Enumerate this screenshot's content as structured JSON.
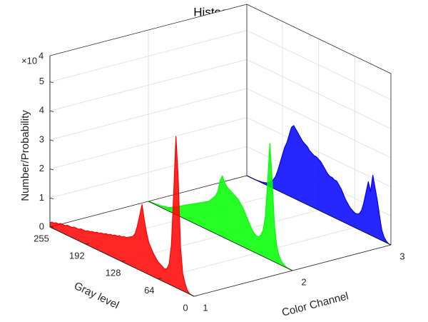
{
  "chart_data": {
    "type": "histogram3d",
    "title": "Histogram",
    "xlabel": "Gray level",
    "ylabel": "Color Channel",
    "zlabel": "Number/Probability",
    "z_exponent_base": "×10",
    "z_exponent": "4",
    "xlim": [
      0,
      255
    ],
    "xticks": [
      0,
      64,
      128,
      192,
      255
    ],
    "ylim": [
      1,
      3
    ],
    "yticks": [
      1,
      2,
      3
    ],
    "zlim": [
      0,
      5.9
    ],
    "zticks": [
      0,
      1,
      2,
      3,
      4,
      5
    ],
    "grid": true,
    "x": [
      0,
      4,
      8,
      12,
      16,
      20,
      24,
      28,
      32,
      36,
      40,
      44,
      48,
      52,
      56,
      60,
      64,
      68,
      72,
      76,
      80,
      84,
      88,
      92,
      96,
      100,
      104,
      108,
      112,
      116,
      120,
      124,
      128,
      132,
      136,
      140,
      144,
      148,
      152,
      156,
      160,
      164,
      168,
      172,
      176,
      180,
      184,
      188,
      192,
      196,
      200,
      204,
      208,
      212,
      216,
      220,
      224,
      228,
      232,
      236,
      240,
      244,
      248,
      252,
      255
    ],
    "series": [
      {
        "channel": 1,
        "color": "#ff0000",
        "values": [
          0,
          0,
          0.02,
          0.1,
          0.3,
          0.6,
          1.5,
          3.8,
          5.2,
          3.2,
          1.4,
          0.7,
          0.5,
          0.45,
          0.5,
          0.55,
          0.6,
          0.7,
          0.8,
          0.95,
          1.1,
          1.4,
          1.8,
          2.3,
          1.9,
          1.5,
          1.2,
          1.05,
          1.0,
          0.95,
          0.9,
          0.9,
          0.85,
          0.85,
          0.8,
          0.8,
          0.75,
          0.75,
          0.7,
          0.7,
          0.65,
          0.65,
          0.6,
          0.6,
          0.55,
          0.55,
          0.5,
          0.5,
          0.45,
          0.45,
          0.45,
          0.4,
          0.4,
          0.4,
          0.35,
          0.35,
          0.35,
          0.3,
          0.3,
          0.3,
          0.25,
          0.25,
          0.2,
          0.2,
          0.15
        ]
      },
      {
        "channel": 2,
        "color": "#00ff00",
        "values": [
          0,
          0,
          0.01,
          0.03,
          0.08,
          0.15,
          0.3,
          0.6,
          1.3,
          2.8,
          4.0,
          2.6,
          1.4,
          0.9,
          0.7,
          0.6,
          0.6,
          0.65,
          0.75,
          0.9,
          1.05,
          1.2,
          1.35,
          1.45,
          1.55,
          1.6,
          1.65,
          1.7,
          1.75,
          1.8,
          1.9,
          2.1,
          1.9,
          1.5,
          1.3,
          1.2,
          1.1,
          1.0,
          0.95,
          0.9,
          0.85,
          0.8,
          0.75,
          0.7,
          0.65,
          0.6,
          0.55,
          0.5,
          0.45,
          0.4,
          0.35,
          0.3,
          0.25,
          0.2,
          0.15,
          0.12,
          0.1,
          0.08,
          0.06,
          0.05,
          0.04,
          0.03,
          0.02,
          0.01,
          0
        ]
      },
      {
        "channel": 3,
        "color": "#0000ff",
        "values": [
          0,
          0,
          0.05,
          0.15,
          0.35,
          0.8,
          1.3,
          1.7,
          2.1,
          1.5,
          1.8,
          1.4,
          1.0,
          0.7,
          0.55,
          0.5,
          0.5,
          0.55,
          0.6,
          0.7,
          0.8,
          0.95,
          1.1,
          1.2,
          1.3,
          1.3,
          1.35,
          1.35,
          1.4,
          1.5,
          1.6,
          1.7,
          1.75,
          1.8,
          1.8,
          1.85,
          1.9,
          2.0,
          2.05,
          2.1,
          2.2,
          2.3,
          2.4,
          2.5,
          2.4,
          2.1,
          1.8,
          1.6,
          1.3,
          1.0,
          0.7,
          0.45,
          0.3,
          0.2,
          0.12,
          0.08,
          0.05,
          0.03,
          0.02,
          0.01,
          0,
          0,
          0,
          0,
          0
        ]
      }
    ]
  }
}
